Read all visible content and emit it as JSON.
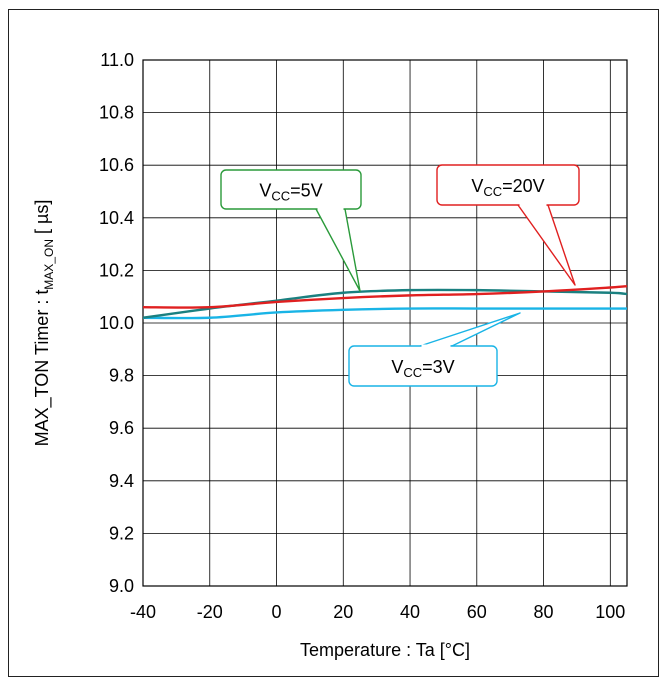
{
  "chart_data": {
    "type": "line",
    "xlabel": "Temperature : Ta [°C]",
    "ylabel": {
      "prefix": "MAX_TON Timer : t",
      "subscript": "MAX_ON",
      "suffix": " [ µs]"
    },
    "xlim": [
      -40,
      105
    ],
    "ylim": [
      9.0,
      11.0
    ],
    "xticks": [
      -40,
      -20,
      0,
      20,
      40,
      60,
      80,
      100
    ],
    "xtick_labels": [
      "-40",
      "-20",
      "0",
      "20",
      "40",
      "60",
      "80",
      "100"
    ],
    "yticks": [
      9.0,
      9.2,
      9.4,
      9.6,
      9.8,
      10.0,
      10.2,
      10.4,
      10.6,
      10.8,
      11.0
    ],
    "ytick_labels": [
      "9.0",
      "9.2",
      "9.4",
      "9.6",
      "9.8",
      "10.0",
      "10.2",
      "10.4",
      "10.6",
      "10.8",
      "11.0"
    ],
    "grid": true,
    "series": [
      {
        "name": {
          "v": "V",
          "sub": "CC",
          "rest": "=5V"
        },
        "color": "#1a8080",
        "x": [
          -40,
          -20,
          0,
          20,
          40,
          60,
          80,
          100,
          105
        ],
        "y": [
          10.02,
          10.055,
          10.085,
          10.115,
          10.125,
          10.125,
          10.12,
          10.115,
          10.11
        ]
      },
      {
        "name": {
          "v": "V",
          "sub": "CC",
          "rest": "=20V"
        },
        "color": "#e02020",
        "x": [
          -40,
          -20,
          0,
          20,
          40,
          60,
          80,
          100,
          105
        ],
        "y": [
          10.06,
          10.06,
          10.08,
          10.095,
          10.105,
          10.11,
          10.12,
          10.135,
          10.14
        ]
      },
      {
        "name": {
          "v": "V",
          "sub": "CC",
          "rest": "=3V"
        },
        "color": "#19b4e6",
        "x": [
          -40,
          -20,
          0,
          20,
          40,
          60,
          80,
          100,
          105
        ],
        "y": [
          10.02,
          10.02,
          10.04,
          10.05,
          10.055,
          10.055,
          10.055,
          10.055,
          10.055
        ]
      }
    ],
    "callout_colors": {
      "5V": "#2a9a3a",
      "20V": "#e02020",
      "3V": "#19b4e6"
    }
  }
}
